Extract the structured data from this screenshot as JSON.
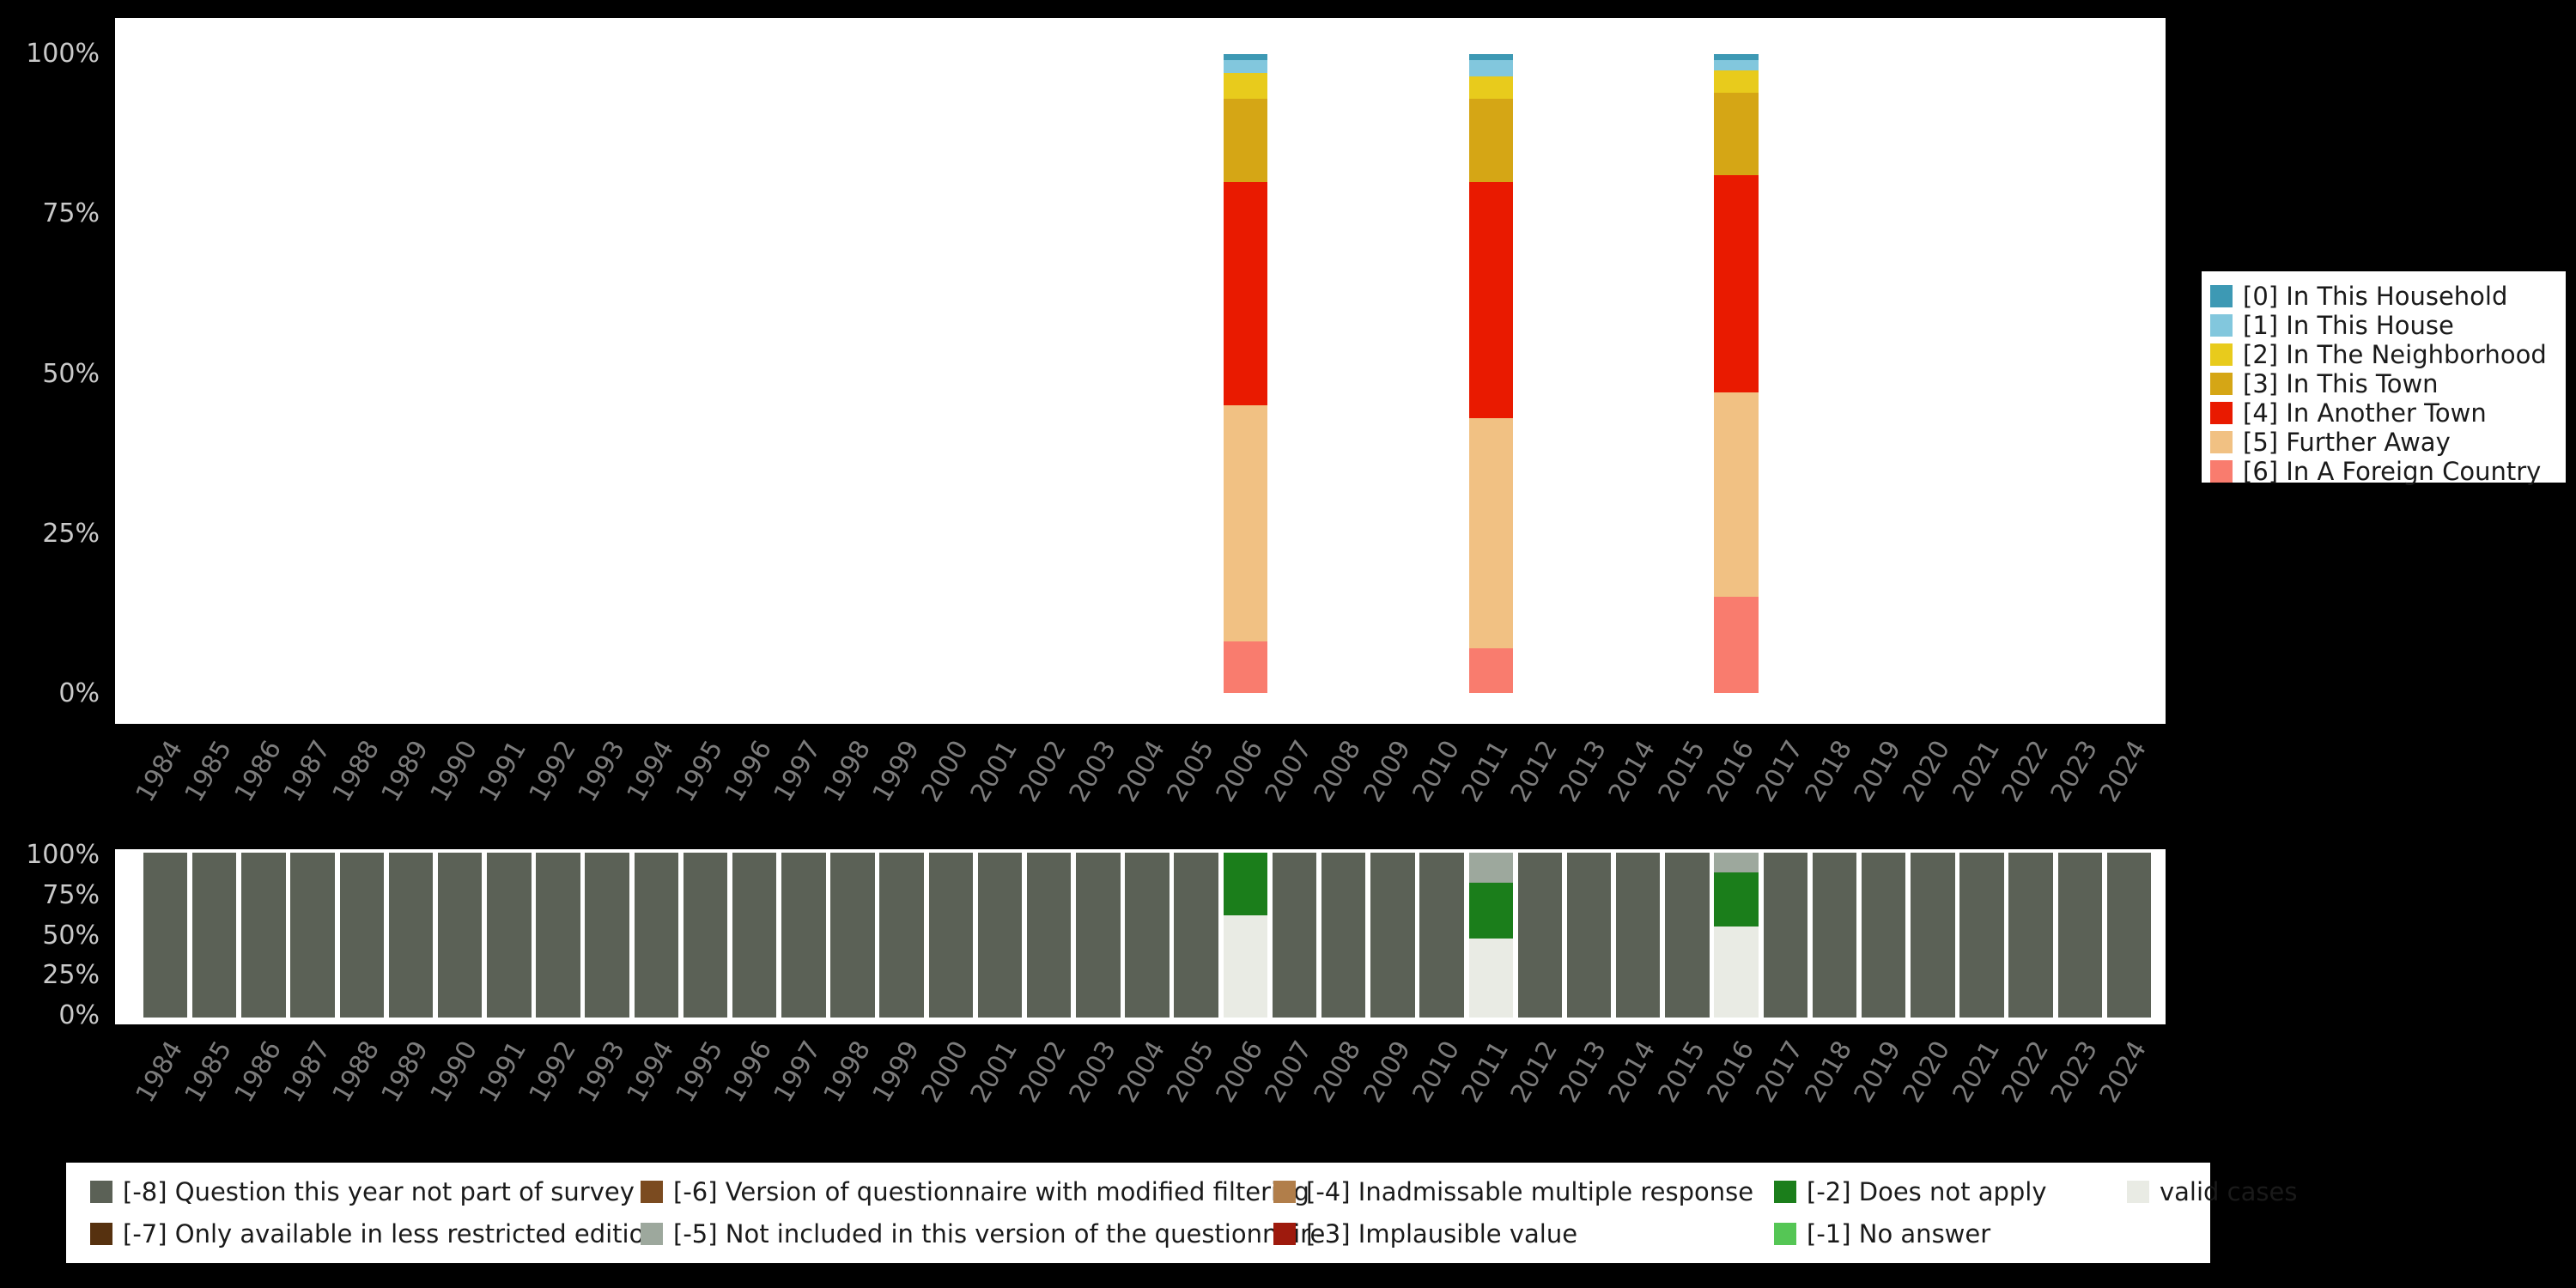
{
  "colors": {
    "page_background": "#000000",
    "panel_background": "#ffffff",
    "ytick_text": "#c9c9c9",
    "xtick_text": "#7c7c7c"
  },
  "axes": {
    "years": [
      "1984",
      "1985",
      "1986",
      "1987",
      "1988",
      "1989",
      "1990",
      "1991",
      "1992",
      "1993",
      "1994",
      "1995",
      "1996",
      "1997",
      "1998",
      "1999",
      "2000",
      "2001",
      "2002",
      "2003",
      "2004",
      "2005",
      "2006",
      "2007",
      "2008",
      "2009",
      "2010",
      "2011",
      "2012",
      "2013",
      "2014",
      "2015",
      "2016",
      "2017",
      "2018",
      "2019",
      "2020",
      "2021",
      "2022",
      "2023",
      "2024"
    ],
    "yticks_top_to_bottom": [
      "100%",
      "75%",
      "50%",
      "25%",
      "0%"
    ]
  },
  "chart_data": [
    {
      "type": "bar",
      "stacked": true,
      "title": "",
      "xlabel": "",
      "ylabel": "",
      "ylim": [
        0,
        100
      ],
      "x": [
        "1984",
        "1985",
        "1986",
        "1987",
        "1988",
        "1989",
        "1990",
        "1991",
        "1992",
        "1993",
        "1994",
        "1995",
        "1996",
        "1997",
        "1998",
        "1999",
        "2000",
        "2001",
        "2002",
        "2003",
        "2004",
        "2005",
        "2006",
        "2007",
        "2008",
        "2009",
        "2010",
        "2011",
        "2012",
        "2013",
        "2014",
        "2015",
        "2016",
        "2017",
        "2018",
        "2019",
        "2020",
        "2021",
        "2022",
        "2023",
        "2024"
      ],
      "yticks": [
        "0%",
        "25%",
        "50%",
        "75%",
        "100%"
      ],
      "grid": false,
      "legend_position": "right",
      "series": [
        {
          "name": "[0] In This Household",
          "color": "#3d99b4",
          "values": {
            "2006": 1,
            "2011": 1,
            "2016": 1
          }
        },
        {
          "name": "[1] In This House",
          "color": "#82c7dd",
          "values": {
            "2006": 2,
            "2011": 2.5,
            "2016": 1.5
          }
        },
        {
          "name": "[2] In The Neighborhood",
          "color": "#e8cb1c",
          "values": {
            "2006": 4,
            "2011": 3.5,
            "2016": 3.5
          }
        },
        {
          "name": "[3] In This Town",
          "color": "#d5a615",
          "values": {
            "2006": 13,
            "2011": 13,
            "2016": 13
          }
        },
        {
          "name": "[4] In Another Town",
          "color": "#e91a00",
          "values": {
            "2006": 35,
            "2011": 37,
            "2016": 34
          }
        },
        {
          "name": "[5] Further Away",
          "color": "#f1c183",
          "values": {
            "2006": 37,
            "2011": 36,
            "2016": 32
          }
        },
        {
          "name": "[6] In A Foreign Country",
          "color": "#f97c6e",
          "values": {
            "2006": 8,
            "2011": 7,
            "2016": 15
          }
        }
      ],
      "stack_order_bottom_to_top": [
        "[6] In A Foreign Country",
        "[5] Further Away",
        "[4] In Another Town",
        "[3] In This Town",
        "[2] In The Neighborhood",
        "[1] In This House",
        "[0] In This Household"
      ]
    },
    {
      "type": "bar",
      "stacked": true,
      "title": "",
      "xlabel": "",
      "ylabel": "",
      "ylim": [
        0,
        100
      ],
      "x": [
        "1984",
        "1985",
        "1986",
        "1987",
        "1988",
        "1989",
        "1990",
        "1991",
        "1992",
        "1993",
        "1994",
        "1995",
        "1996",
        "1997",
        "1998",
        "1999",
        "2000",
        "2001",
        "2002",
        "2003",
        "2004",
        "2005",
        "2006",
        "2007",
        "2008",
        "2009",
        "2010",
        "2011",
        "2012",
        "2013",
        "2014",
        "2015",
        "2016",
        "2017",
        "2018",
        "2019",
        "2020",
        "2021",
        "2022",
        "2023",
        "2024"
      ],
      "yticks": [
        "0%",
        "25%",
        "50%",
        "75%",
        "100%"
      ],
      "grid": false,
      "legend_position": "bottom",
      "series": [
        {
          "name": "valid cases",
          "color": "#e9ebe4",
          "values": {
            "2006": 62,
            "2011": 48,
            "2016": 55
          }
        },
        {
          "name": "[-2] Does not apply",
          "color": "#1b7e1b",
          "values": {
            "2006": 38,
            "2011": 34,
            "2016": 33
          }
        },
        {
          "name": "[-5] Not included in this version of the questionnaire",
          "color": "#9da89d",
          "values": {
            "2011": 18,
            "2016": 12
          }
        },
        {
          "name": "[-8] Question this year not part of survey",
          "color": "#5b6156",
          "values": {
            "1984": 100,
            "1985": 100,
            "1986": 100,
            "1987": 100,
            "1988": 100,
            "1989": 100,
            "1990": 100,
            "1991": 100,
            "1992": 100,
            "1993": 100,
            "1994": 100,
            "1995": 100,
            "1996": 100,
            "1997": 100,
            "1998": 100,
            "1999": 100,
            "2000": 100,
            "2001": 100,
            "2002": 100,
            "2003": 100,
            "2004": 100,
            "2005": 100,
            "2007": 100,
            "2008": 100,
            "2009": 100,
            "2010": 100,
            "2012": 100,
            "2013": 100,
            "2014": 100,
            "2015": 100,
            "2017": 100,
            "2018": 100,
            "2019": 100,
            "2020": 100,
            "2021": 100,
            "2022": 100,
            "2023": 100,
            "2024": 100
          }
        }
      ],
      "stack_order_bottom_to_top": [
        "valid cases",
        "[-2] Does not apply",
        "[-5] Not included in this version of the questionnaire",
        "[-8] Question this year not part of survey"
      ]
    }
  ],
  "legend_top": {
    "items": [
      {
        "label": "[0] In This Household",
        "color": "#3d99b4"
      },
      {
        "label": "[1] In This House",
        "color": "#82c7dd"
      },
      {
        "label": "[2] In The Neighborhood",
        "color": "#e8cb1c"
      },
      {
        "label": "[3] In This Town",
        "color": "#d5a615"
      },
      {
        "label": "[4] In Another Town",
        "color": "#e91a00"
      },
      {
        "label": "[5] Further Away",
        "color": "#f1c183"
      },
      {
        "label": "[6] In A Foreign Country",
        "color": "#f97c6e"
      }
    ]
  },
  "legend_bottom": {
    "items": [
      {
        "label": "[-8] Question this year not part of survey",
        "color": "#5b6156"
      },
      {
        "label": "[-7] Only available in less restricted edition",
        "color": "#56310f"
      },
      {
        "label": "[-6] Version of questionnaire with modified filtering",
        "color": "#7b4b20"
      },
      {
        "label": "[-5] Not included in this version of the questionnaire",
        "color": "#9da89d"
      },
      {
        "label": "[-4] Inadmissable multiple response",
        "color": "#b17e4a"
      },
      {
        "label": "[-3] Implausible value",
        "color": "#9e1a0d"
      },
      {
        "label": "[-2] Does not apply",
        "color": "#1b7e1b"
      },
      {
        "label": "[-1] No answer",
        "color": "#55c655"
      },
      {
        "label": "valid cases",
        "color": "#e9ebe4"
      }
    ]
  }
}
